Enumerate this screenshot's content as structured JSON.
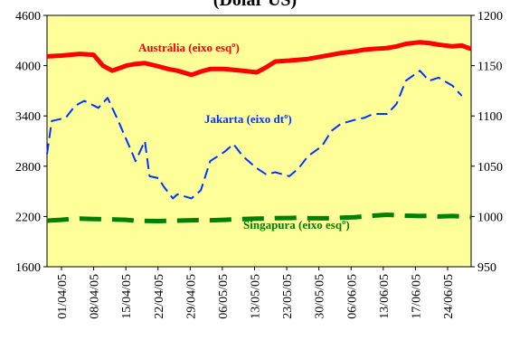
{
  "chart_data": {
    "type": "line",
    "title": "(Dólar US)",
    "dual_axis": true,
    "y_left": {
      "ylim": [
        1600,
        4600
      ],
      "ticks": [
        1600,
        2200,
        2800,
        3400,
        4000,
        4600
      ]
    },
    "y_right": {
      "ylim": [
        950,
        1200
      ],
      "ticks": [
        950,
        1000,
        1050,
        1100,
        1150,
        1200
      ]
    },
    "x_range": [
      "2005-04-01",
      "2005-07-01"
    ],
    "x_tick_labels": [
      "01/04/05",
      "08/04/05",
      "15/04/05",
      "22/04/05",
      "29/04/05",
      "06/05/05",
      "13/05/05",
      "23/05/05",
      "30/05/05",
      "06/06/05",
      "13/06/05",
      "17/06/05",
      "24/06/05"
    ],
    "grid": false,
    "plot_background": "#FFFF99",
    "series": [
      {
        "name": "Austrália (eixo esqº)",
        "axis": "left",
        "color": "#FF0000",
        "style": "solid",
        "x": [
          "2005-04-01",
          "2005-04-04",
          "2005-04-06",
          "2005-04-08",
          "2005-04-11",
          "2005-04-13",
          "2005-04-15",
          "2005-04-18",
          "2005-04-20",
          "2005-04-22",
          "2005-04-25",
          "2005-04-27",
          "2005-04-29",
          "2005-05-02",
          "2005-05-04",
          "2005-05-06",
          "2005-05-09",
          "2005-05-11",
          "2005-05-13",
          "2005-05-16",
          "2005-05-18",
          "2005-05-20",
          "2005-05-23",
          "2005-05-25",
          "2005-05-27",
          "2005-05-30",
          "2005-06-01",
          "2005-06-03",
          "2005-06-06",
          "2005-06-08",
          "2005-06-10",
          "2005-06-13",
          "2005-06-15",
          "2005-06-17",
          "2005-06-20",
          "2005-06-22",
          "2005-06-24",
          "2005-06-27",
          "2005-06-29",
          "2005-07-01"
        ],
        "values": [
          4110,
          4120,
          4130,
          4140,
          4130,
          4000,
          3940,
          4000,
          4020,
          4030,
          3990,
          3960,
          3940,
          3890,
          3930,
          3960,
          3960,
          3950,
          3940,
          3920,
          3980,
          4050,
          4060,
          4070,
          4080,
          4110,
          4130,
          4150,
          4170,
          4190,
          4200,
          4210,
          4230,
          4260,
          4280,
          4270,
          4250,
          4230,
          4240,
          4200
        ]
      },
      {
        "name": "Jakarta  (eixo dtº)",
        "axis": "right",
        "color": "#0033FF",
        "style": "dashed",
        "x": [
          "2005-04-01",
          "2005-04-02",
          "2005-04-05",
          "2005-04-07",
          "2005-04-09",
          "2005-04-12",
          "2005-04-14",
          "2005-04-16",
          "2005-04-19",
          "2005-04-20",
          "2005-04-22",
          "2005-04-23",
          "2005-04-25",
          "2005-04-26",
          "2005-04-28",
          "2005-04-29",
          "2005-05-02",
          "2005-05-04",
          "2005-05-06",
          "2005-05-09",
          "2005-05-11",
          "2005-05-13",
          "2005-05-16",
          "2005-05-18",
          "2005-05-20",
          "2005-05-23",
          "2005-05-25",
          "2005-05-27",
          "2005-05-30",
          "2005-06-01",
          "2005-06-03",
          "2005-06-06",
          "2005-06-08",
          "2005-06-10",
          "2005-06-13",
          "2005-06-15",
          "2005-06-17",
          "2005-06-20",
          "2005-06-22",
          "2005-06-24",
          "2005-06-27",
          "2005-06-29"
        ],
        "values": [
          1062,
          1095,
          1098,
          1110,
          1115,
          1108,
          1118,
          1098,
          1066,
          1055,
          1075,
          1040,
          1038,
          1030,
          1018,
          1022,
          1018,
          1026,
          1055,
          1064,
          1072,
          1060,
          1048,
          1042,
          1044,
          1040,
          1048,
          1060,
          1070,
          1085,
          1092,
          1096,
          1098,
          1102,
          1102,
          1112,
          1135,
          1145,
          1135,
          1138,
          1130,
          1120
        ]
      },
      {
        "name": "Singapura (eixo esqº)",
        "axis": "left",
        "color": "#008000",
        "style": "dashed",
        "x": [
          "2005-04-01",
          "2005-04-04",
          "2005-04-06",
          "2005-04-08",
          "2005-04-11",
          "2005-04-13",
          "2005-04-15",
          "2005-04-18",
          "2005-04-20",
          "2005-04-22",
          "2005-04-25",
          "2005-04-27",
          "2005-04-29",
          "2005-05-02",
          "2005-05-04",
          "2005-05-06",
          "2005-05-09",
          "2005-05-11",
          "2005-05-13",
          "2005-05-16",
          "2005-05-18",
          "2005-05-20",
          "2005-05-23",
          "2005-05-25",
          "2005-05-27",
          "2005-05-30",
          "2005-06-01",
          "2005-06-03",
          "2005-06-06",
          "2005-06-08",
          "2005-06-10",
          "2005-06-13",
          "2005-06-15",
          "2005-06-17",
          "2005-06-20",
          "2005-06-22",
          "2005-06-24",
          "2005-06-27",
          "2005-06-29",
          "2005-07-01"
        ],
        "values": [
          2150,
          2160,
          2170,
          2175,
          2170,
          2168,
          2165,
          2160,
          2150,
          2148,
          2145,
          2148,
          2150,
          2155,
          2158,
          2155,
          2160,
          2165,
          2170,
          2175,
          2175,
          2180,
          2182,
          2185,
          2180,
          2178,
          2180,
          2185,
          2190,
          2200,
          2210,
          2220,
          2215,
          2210,
          2205,
          2208,
          2200,
          2205,
          2200,
          2195
        ]
      }
    ],
    "annotations": [
      {
        "text": "Austrália (eixo esqº)",
        "color": "#FF0000"
      },
      {
        "text": "Jakarta  (eixo dtº)",
        "color": "#0033FF"
      },
      {
        "text": "Singapura (eixo esqº)",
        "color": "#008000"
      }
    ]
  }
}
